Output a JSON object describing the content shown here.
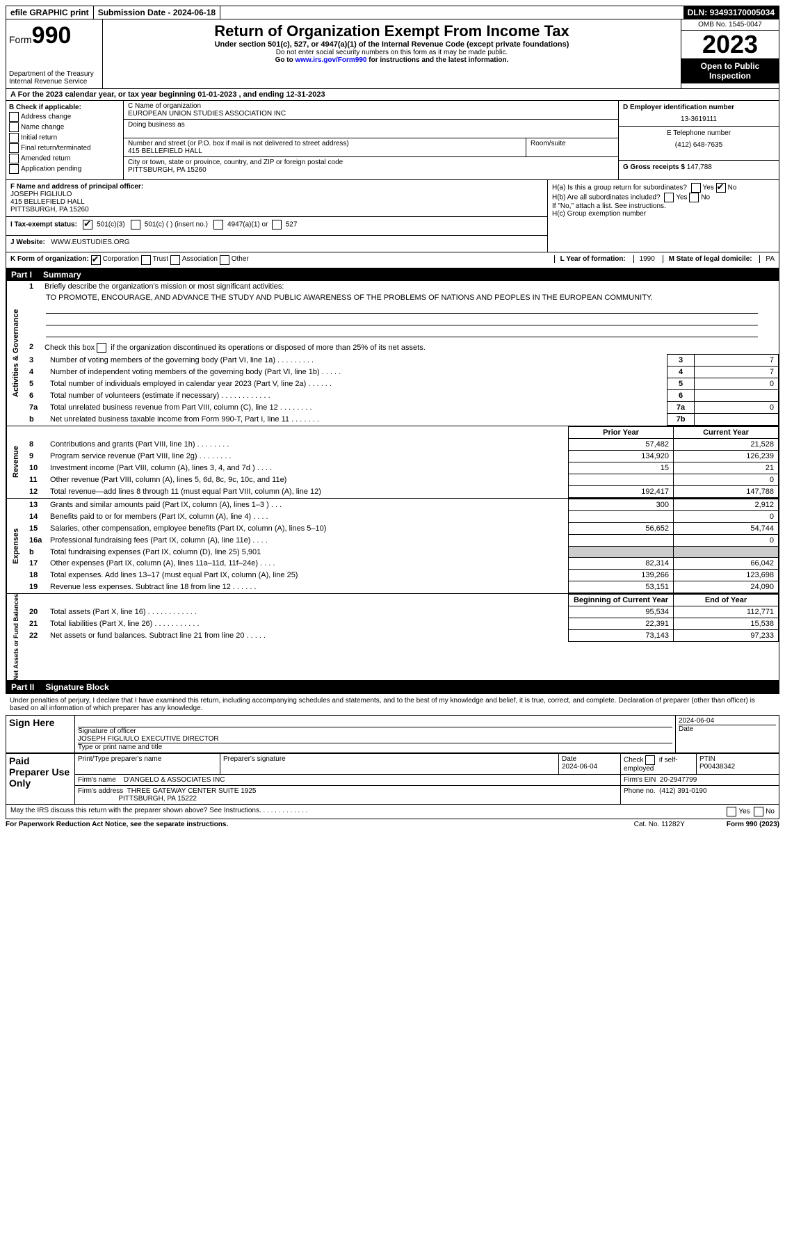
{
  "topbar": {
    "efile": "efile GRAPHIC print",
    "submission_label": "Submission Date - ",
    "submission_date": "2024-06-18",
    "dln_label": "DLN: ",
    "dln": "93493170005034"
  },
  "header": {
    "form_label": "Form",
    "form_number": "990",
    "dept1": "Department of the Treasury",
    "dept2": "Internal Revenue Service",
    "title": "Return of Organization Exempt From Income Tax",
    "sub": "Under section 501(c), 527, or 4947(a)(1) of the Internal Revenue Code (except private foundations)",
    "note1": "Do not enter social security numbers on this form as it may be made public.",
    "note2_pre": "Go to ",
    "note2_link": "www.irs.gov/Form990",
    "note2_post": " for instructions and the latest information.",
    "omb": "OMB No. 1545-0047",
    "year": "2023",
    "open": "Open to Public Inspection"
  },
  "row_a": "A  For the 2023 calendar year, or tax year beginning 01-01-2023   , and ending 12-31-2023",
  "col_b": {
    "label": "B Check if applicable:",
    "items": [
      "Address change",
      "Name change",
      "Initial return",
      "Final return/terminated",
      "Amended return",
      "Application pending"
    ]
  },
  "box_c": {
    "label": "C Name of organization",
    "name": "EUROPEAN UNION STUDIES ASSOCIATION INC",
    "dba_label": "Doing business as",
    "addr_label": "Number and street (or P.O. box if mail is not delivered to street address)",
    "addr": "415 BELLEFIELD HALL",
    "suite_label": "Room/suite",
    "city_label": "City or town, state or province, country, and ZIP or foreign postal code",
    "city": "PITTSBURGH, PA  15260"
  },
  "box_d": {
    "label": "D Employer identification number",
    "value": "13-3619111"
  },
  "box_e": {
    "label": "E Telephone number",
    "value": "(412) 648-7635"
  },
  "box_g": {
    "label": "G Gross receipts $ ",
    "value": "147,788"
  },
  "box_f": {
    "label": "F  Name and address of principal officer:",
    "l1": "JOSEPH FIGLIULO",
    "l2": "415 BELLEFIELD HALL",
    "l3": "PITTSBURGH, PA  15260"
  },
  "box_h": {
    "a": "H(a)  Is this a group return for subordinates?",
    "b": "H(b)  Are all subordinates included?",
    "bnote": "If \"No,\" attach a list. See instructions.",
    "c": "H(c)  Group exemption number"
  },
  "row_i": {
    "label": "I   Tax-exempt status:",
    "o1": "501(c)(3)",
    "o2": "501(c) (  ) (insert no.)",
    "o3": "4947(a)(1) or",
    "o4": "527"
  },
  "row_j": {
    "label": "J   Website:",
    "value": "WWW.EUSTUDIES.ORG"
  },
  "row_k": {
    "label": "K Form of organization:",
    "o1": "Corporation",
    "o2": "Trust",
    "o3": "Association",
    "o4": "Other",
    "l_label": "L Year of formation: ",
    "l_val": "1990",
    "m_label": "M State of legal domicile: ",
    "m_val": "PA"
  },
  "part1": {
    "label": "Part I",
    "name": "Summary",
    "vlabels": [
      "Activities & Governance",
      "Revenue",
      "Expenses",
      "Net Assets or Fund Balances"
    ],
    "line1a": "Briefly describe the organization's mission or most significant activities:",
    "line1b": "TO PROMOTE, ENCOURAGE, AND ADVANCE THE STUDY AND PUBLIC AWARENESS OF THE PROBLEMS OF NATIONS AND PEOPLES IN THE EUROPEAN COMMUNITY.",
    "line2": "Check this box       if the organization discontinued its operations or disposed of more than 25% of its net assets.",
    "gov_rows": [
      {
        "n": "3",
        "d": "Number of voting members of the governing body (Part VI, line 1a)  .    .    .    .    .    .    .    .    .",
        "b": "3",
        "v": "7"
      },
      {
        "n": "4",
        "d": "Number of independent voting members of the governing body (Part VI, line 1b)   .    .    .    .    .",
        "b": "4",
        "v": "7"
      },
      {
        "n": "5",
        "d": "Total number of individuals employed in calendar year 2023 (Part V, line 2a)   .    .    .    .    .    .",
        "b": "5",
        "v": "0"
      },
      {
        "n": "6",
        "d": "Total number of volunteers (estimate if necessary)    .    .    .    .    .    .    .    .    .    .    .    .",
        "b": "6",
        "v": ""
      },
      {
        "n": "7a",
        "d": "Total unrelated business revenue from Part VIII, column (C), line 12   .    .    .    .    .    .    .    .",
        "b": "7a",
        "v": "0"
      },
      {
        "n": "b",
        "d": "Net unrelated business taxable income from Form 990-T, Part I, line 11   .    .    .    .    .    .    .",
        "b": "7b",
        "v": ""
      }
    ],
    "col_headers": [
      "Prior Year",
      "Current Year",
      "Beginning of Current Year",
      "End of Year"
    ],
    "rev_rows": [
      {
        "n": "8",
        "d": "Contributions and grants (Part VIII, line 1h)   .    .    .    .    .    .    .    .",
        "p": "57,482",
        "c": "21,528"
      },
      {
        "n": "9",
        "d": "Program service revenue (Part VIII, line 2g)   .    .    .    .    .    .    .    .",
        "p": "134,920",
        "c": "126,239"
      },
      {
        "n": "10",
        "d": "Investment income (Part VIII, column (A), lines 3, 4, and 7d )   .    .    .    .",
        "p": "15",
        "c": "21"
      },
      {
        "n": "11",
        "d": "Other revenue (Part VIII, column (A), lines 5, 6d, 8c, 9c, 10c, and 11e)",
        "p": "",
        "c": "0"
      },
      {
        "n": "12",
        "d": "Total revenue—add lines 8 through 11 (must equal Part VIII, column (A), line 12)",
        "p": "192,417",
        "c": "147,788"
      }
    ],
    "exp_rows": [
      {
        "n": "13",
        "d": "Grants and similar amounts paid (Part IX, column (A), lines 1–3 )   .    .    .",
        "p": "300",
        "c": "2,912"
      },
      {
        "n": "14",
        "d": "Benefits paid to or for members (Part IX, column (A), line 4)   .    .    .    .",
        "p": "",
        "c": "0"
      },
      {
        "n": "15",
        "d": "Salaries, other compensation, employee benefits (Part IX, column (A), lines 5–10)",
        "p": "56,652",
        "c": "54,744"
      },
      {
        "n": "16a",
        "d": "Professional fundraising fees (Part IX, column (A), line 11e)   .    .    .    .",
        "p": "",
        "c": "0"
      },
      {
        "n": "b",
        "d": "Total fundraising expenses (Part IX, column (D), line 25) 5,901",
        "p": "shade",
        "c": "shade"
      },
      {
        "n": "17",
        "d": "Other expenses (Part IX, column (A), lines 11a–11d, 11f–24e)   .    .    .    .",
        "p": "82,314",
        "c": "66,042"
      },
      {
        "n": "18",
        "d": "Total expenses. Add lines 13–17 (must equal Part IX, column (A), line 25)",
        "p": "139,266",
        "c": "123,698"
      },
      {
        "n": "19",
        "d": "Revenue less expenses. Subtract line 18 from line 12   .    .    .    .    .    .",
        "p": "53,151",
        "c": "24,090"
      }
    ],
    "net_rows": [
      {
        "n": "20",
        "d": "Total assets (Part X, line 16)   .    .    .    .    .    .    .    .    .    .    .    .",
        "p": "95,534",
        "c": "112,771"
      },
      {
        "n": "21",
        "d": "Total liabilities (Part X, line 26)   .    .    .    .    .    .    .    .    .    .    .",
        "p": "22,391",
        "c": "15,538"
      },
      {
        "n": "22",
        "d": "Net assets or fund balances. Subtract line 21 from line 20   .    .    .    .    .",
        "p": "73,143",
        "c": "97,233"
      }
    ]
  },
  "part2": {
    "label": "Part II",
    "name": "Signature Block",
    "decl": "Under penalties of perjury, I declare that I have examined this return, including accompanying schedules and statements, and to the best of my knowledge and belief, it is true, correct, and complete. Declaration of preparer (other than officer) is based on all information of which preparer has any knowledge.",
    "signhere": "Sign Here",
    "sig_date": "2024-06-04",
    "sig_label": "Signature of officer",
    "sig_name": "JOSEPH FIGLIULO  EXECUTIVE DIRECTOR",
    "sig_type": "Type or print name and title",
    "date_label": "Date",
    "paid": "Paid Preparer Use Only",
    "prep_name_label": "Print/Type preparer's name",
    "prep_sig_label": "Preparer's signature",
    "prep_date_label": "Date",
    "prep_date": "2024-06-04",
    "prep_check": "Check        if self-employed",
    "ptin_label": "PTIN",
    "ptin": "P00438342",
    "firm_name_label": "Firm's name",
    "firm_name": "D'ANGELO & ASSOCIATES INC",
    "firm_ein_label": "Firm's EIN",
    "firm_ein": "20-2947799",
    "firm_addr_label": "Firm's address",
    "firm_addr1": "THREE GATEWAY CENTER SUITE 1925",
    "firm_addr2": "PITTSBURGH, PA  15222",
    "phone_label": "Phone no.",
    "phone": "(412) 391-0190",
    "discuss": "May the IRS discuss this return with the preparer shown above? See Instructions.    .    .    .    .    .    .    .    .    .    .    .    .",
    "yes": "Yes",
    "no": "No"
  },
  "footer": {
    "pra": "For Paperwork Reduction Act Notice, see the separate instructions.",
    "cat": "Cat. No. 11282Y",
    "formref": "Form 990 (2023)"
  }
}
